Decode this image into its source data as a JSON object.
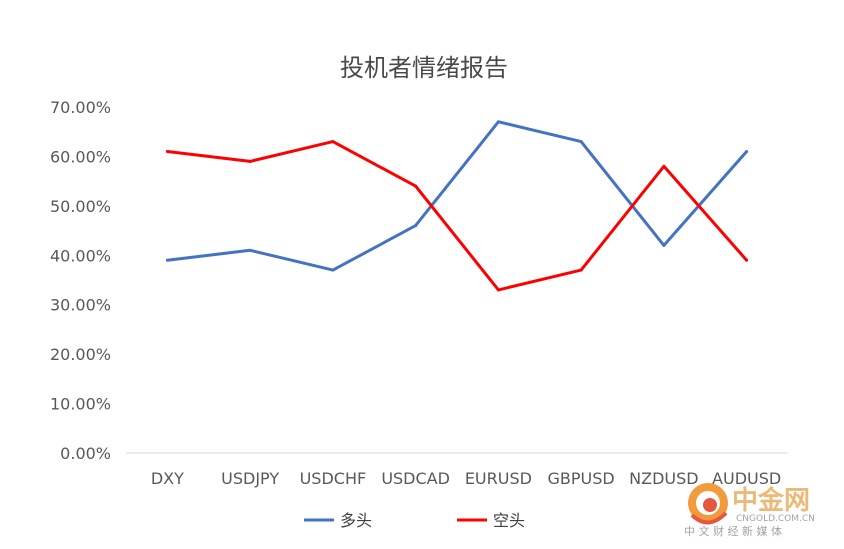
{
  "chart_data": {
    "type": "line",
    "title": "投机者情绪报告",
    "xlabel": "",
    "ylabel": "",
    "categories": [
      "DXY",
      "USDJPY",
      "USDCHF",
      "USDCAD",
      "EURUSD",
      "GBPUSD",
      "NZDUSD",
      "AUDUSD"
    ],
    "series": [
      {
        "name": "多头",
        "color": "#4472c4",
        "values": [
          0.39,
          0.41,
          0.37,
          0.46,
          0.67,
          0.63,
          0.42,
          0.61
        ]
      },
      {
        "name": "空头",
        "color": "#ff0000",
        "values": [
          0.61,
          0.59,
          0.63,
          0.54,
          0.33,
          0.37,
          0.58,
          0.39
        ]
      }
    ],
    "ylim": [
      0,
      0.7
    ],
    "yticks": [
      "0.00%",
      "10.00%",
      "20.00%",
      "30.00%",
      "40.00%",
      "50.00%",
      "60.00%",
      "70.00%"
    ],
    "grid": false,
    "legend": "bottom"
  },
  "watermark": {
    "logo_text": "中金网",
    "url_text": "CNGOLD.COM.CN",
    "slogan": "中 文 财 经 新 媒 体"
  }
}
